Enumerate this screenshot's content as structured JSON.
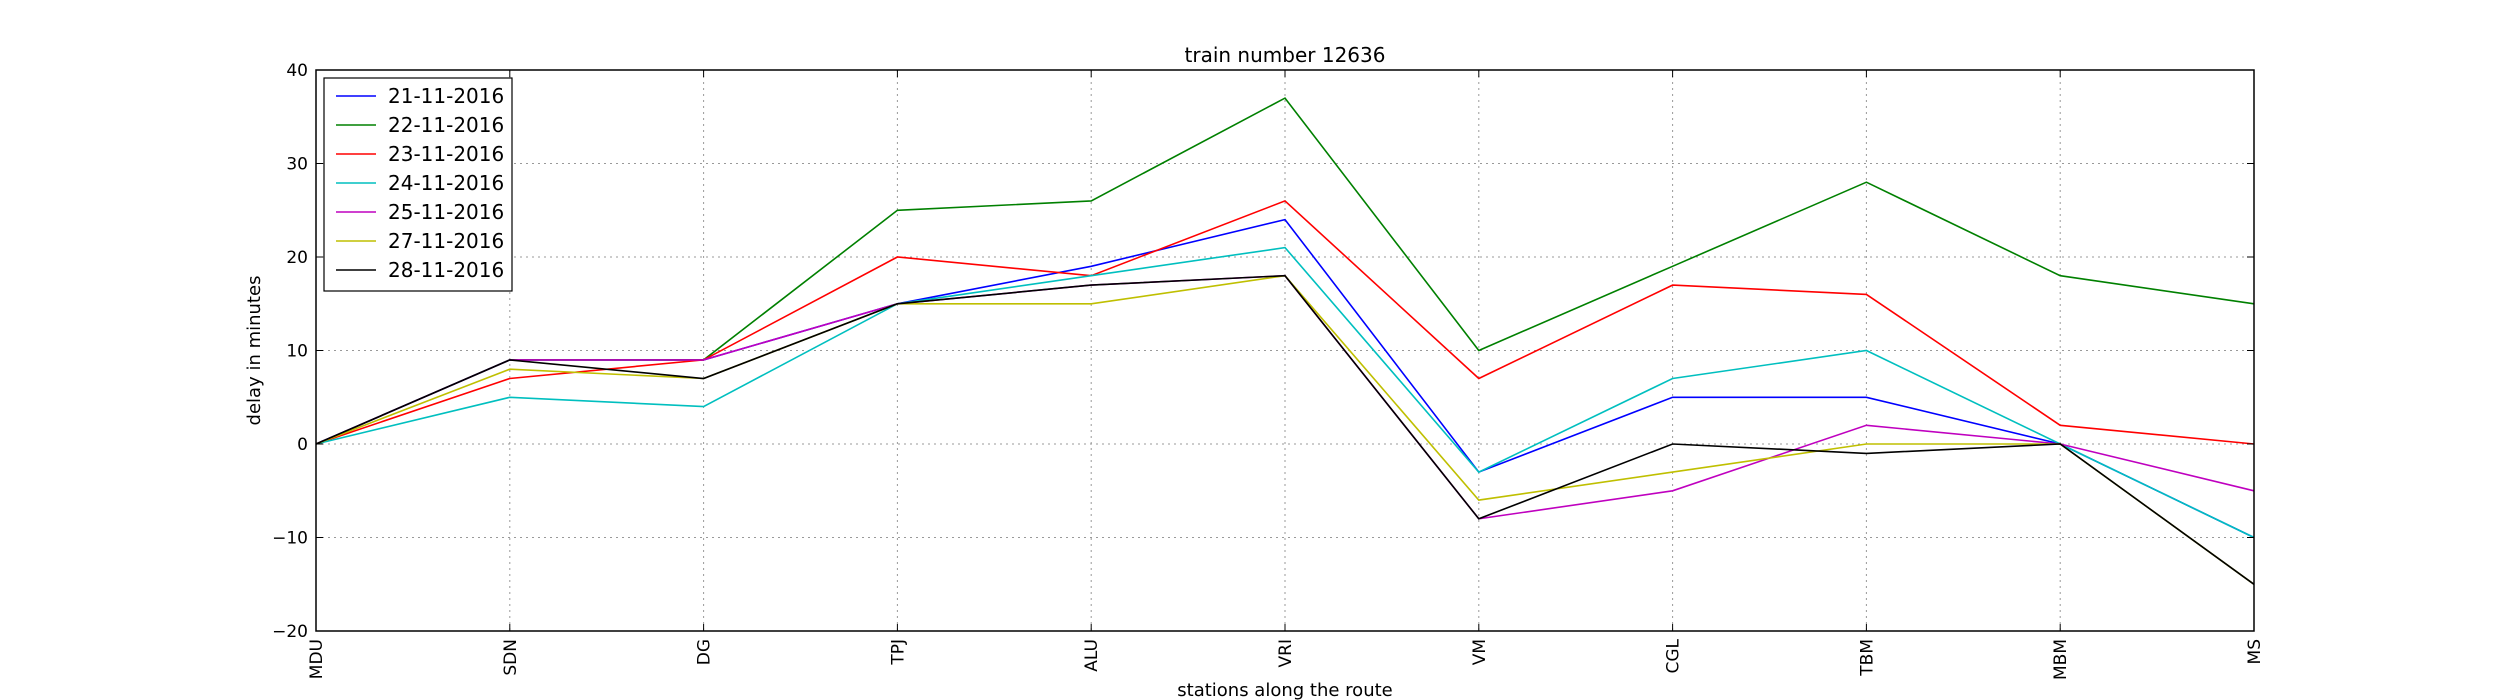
{
  "chart_data": {
    "type": "line",
    "title": "train number 12636",
    "xlabel": "stations along the route",
    "ylabel": "delay in minutes",
    "categories": [
      "MDU",
      "SDN",
      "DG",
      "TPJ",
      "ALU",
      "VRI",
      "VM",
      "CGL",
      "TBM",
      "MBM",
      "MS"
    ],
    "ylim": [
      -20,
      40
    ],
    "yticks": [
      -20,
      -10,
      0,
      10,
      20,
      30,
      40
    ],
    "ytick_labels": [
      "−20",
      "−10",
      "0",
      "10",
      "20",
      "30",
      "40"
    ],
    "grid": true,
    "legend_position": "top-left",
    "series": [
      {
        "name": "21-11-2016",
        "color": "#0000ff",
        "values": [
          0,
          9,
          9,
          15,
          19,
          24,
          -3,
          5,
          5,
          0,
          -10
        ]
      },
      {
        "name": "22-11-2016",
        "color": "#008000",
        "values": [
          0,
          9,
          9,
          25,
          26,
          37,
          10,
          19,
          28,
          18,
          15
        ]
      },
      {
        "name": "23-11-2016",
        "color": "#ff0000",
        "values": [
          0,
          7,
          9,
          20,
          18,
          26,
          7,
          17,
          16,
          2,
          0
        ]
      },
      {
        "name": "24-11-2016",
        "color": "#00bfbf",
        "values": [
          0,
          5,
          4,
          15,
          18,
          21,
          -3,
          7,
          10,
          0,
          -10
        ]
      },
      {
        "name": "25-11-2016",
        "color": "#bf00bf",
        "values": [
          0,
          9,
          9,
          15,
          17,
          18,
          -8,
          -5,
          2,
          0,
          -5
        ]
      },
      {
        "name": "27-11-2016",
        "color": "#bfbf00",
        "values": [
          0,
          8,
          7,
          15,
          15,
          18,
          -6,
          -3,
          0,
          0,
          -15
        ]
      },
      {
        "name": "28-11-2016",
        "color": "#000000",
        "values": [
          0,
          9,
          7,
          15,
          17,
          18,
          -8,
          0,
          -1,
          0,
          -15
        ]
      }
    ]
  }
}
